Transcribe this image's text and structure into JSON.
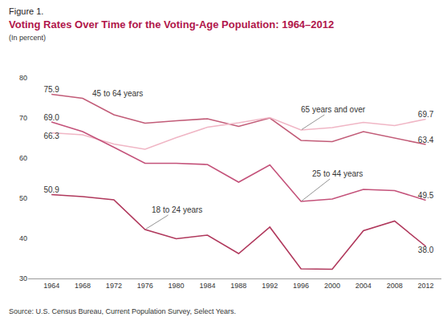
{
  "chart_data": {
    "type": "line",
    "figure_label": "Figure 1.",
    "title": "Voting Rates Over Time for the Voting-Age Population: 1964–2012",
    "subtitle": "(In percent)",
    "source": "Source: U.S. Census Bureau, Current Population Survey, Select Years.",
    "x": [
      1964,
      1968,
      1972,
      1976,
      1980,
      1984,
      1988,
      1992,
      1996,
      2000,
      2004,
      2008,
      2012
    ],
    "xlim": [
      1961,
      2014
    ],
    "xticks": [
      1964,
      1968,
      1972,
      1976,
      1980,
      1984,
      1988,
      1992,
      1996,
      2000,
      2004,
      2008,
      2012
    ],
    "ylim": [
      30,
      80
    ],
    "yticks": [
      30,
      40,
      50,
      60,
      70,
      80
    ],
    "grid": false,
    "series": [
      {
        "name": "45 to 64 years",
        "color": "#c25c78",
        "values": [
          75.9,
          74.9,
          70.8,
          68.7,
          69.3,
          69.8,
          67.9,
          70.0,
          64.4,
          64.1,
          66.6,
          65.0,
          63.4
        ],
        "value_labels": [
          "75.9",
          null,
          null,
          null,
          null,
          null,
          null,
          null,
          null,
          null,
          null,
          null,
          "63.4"
        ]
      },
      {
        "name": "65 years and over",
        "color": "#f0b6c5",
        "values": [
          66.3,
          65.8,
          63.5,
          62.2,
          65.1,
          67.7,
          68.8,
          70.1,
          67.0,
          67.6,
          68.9,
          68.1,
          69.7
        ],
        "value_labels": [
          "66.3",
          null,
          null,
          null,
          null,
          null,
          null,
          null,
          null,
          null,
          null,
          null,
          "69.7"
        ]
      },
      {
        "name": "25 to 44 years",
        "color": "#c4527a",
        "values": [
          69.0,
          66.6,
          62.7,
          58.7,
          58.7,
          58.4,
          54.0,
          58.3,
          49.2,
          49.8,
          52.2,
          51.9,
          49.5
        ],
        "value_labels": [
          "69.0",
          null,
          null,
          null,
          null,
          null,
          null,
          null,
          null,
          null,
          null,
          null,
          "49.5"
        ]
      },
      {
        "name": "18 to 24 years",
        "color": "#b0385c",
        "values": [
          50.9,
          50.4,
          49.6,
          42.2,
          39.9,
          40.8,
          36.2,
          42.8,
          32.4,
          32.3,
          41.9,
          44.3,
          38.0
        ],
        "value_labels": [
          "50.9",
          null,
          null,
          null,
          null,
          null,
          null,
          null,
          null,
          null,
          null,
          null,
          "38.0"
        ]
      }
    ]
  }
}
